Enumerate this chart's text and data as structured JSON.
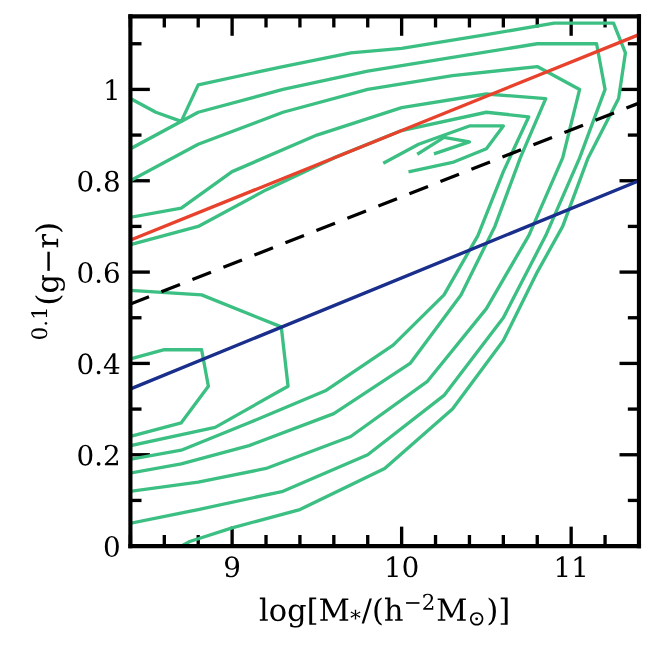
{
  "chart_data": {
    "type": "line",
    "xlabel": "log[M$_{*}$/(h$^{−2}$M$_{⊙}$)]",
    "ylabel": "$^{0.1}$(g−r)",
    "xlim": [
      8.4,
      11.4
    ],
    "ylim": [
      0,
      1.16
    ],
    "xticks": [
      {
        "value": 8.4,
        "label": null
      },
      {
        "value": 8.6,
        "label": null
      },
      {
        "value": 8.8,
        "label": null
      },
      9,
      {
        "value": 9.2,
        "label": null
      },
      {
        "value": 9.4,
        "label": null
      },
      {
        "value": 9.6,
        "label": null
      },
      {
        "value": 9.8,
        "label": null
      },
      10,
      {
        "value": 10.2,
        "label": null
      },
      {
        "value": 10.4,
        "label": null
      },
      {
        "value": 10.6,
        "label": null
      },
      {
        "value": 10.8,
        "label": null
      },
      11,
      {
        "value": 11.2,
        "label": null
      }
    ],
    "yticks": [
      0,
      {
        "value": 0.1,
        "label": null
      },
      0.2,
      {
        "value": 0.3,
        "label": null
      },
      0.4,
      {
        "value": 0.5,
        "label": null
      },
      0.6,
      {
        "value": 0.7,
        "label": null
      },
      0.8,
      {
        "value": 0.9,
        "label": null
      },
      1,
      {
        "value": 1.1,
        "label": null
      }
    ],
    "grid": false,
    "legend": false,
    "series": [
      {
        "color": "#3cbf82",
        "line_style": "solid",
        "x": [
          8.4,
          8.55,
          8.7,
          8.8,
          9.3,
          9.7,
          10.0,
          10.5,
          10.9,
          11.25,
          11.32,
          11.28,
          11.1,
          10.95,
          10.8,
          10.6,
          10.3,
          9.9,
          9.4,
          9.0,
          8.75,
          8.7
        ],
        "values": [
          0.98,
          0.95,
          0.93,
          1.01,
          1.05,
          1.08,
          1.09,
          1.12,
          1.145,
          1.145,
          1.08,
          0.98,
          0.85,
          0.7,
          0.6,
          0.45,
          0.3,
          0.17,
          0.08,
          0.04,
          0.01,
          0
        ]
      },
      {
        "color": "#3cbf82",
        "line_style": "solid",
        "x": [
          8.4,
          8.8,
          9.3,
          9.8,
          10.3,
          10.8,
          11.15,
          11.2,
          11.05,
          10.85,
          10.6,
          10.25,
          9.8,
          9.3,
          8.8,
          8.4
        ],
        "values": [
          0.87,
          0.95,
          1.0,
          1.04,
          1.07,
          1.1,
          1.1,
          1.0,
          0.85,
          0.68,
          0.5,
          0.33,
          0.2,
          0.12,
          0.08,
          0.05
        ]
      },
      {
        "color": "#3cbf82",
        "line_style": "solid",
        "x": [
          8.4,
          8.8,
          9.3,
          9.8,
          10.3,
          10.8,
          11.05,
          10.95,
          10.75,
          10.5,
          10.15,
          9.7,
          9.2,
          8.8,
          8.4
        ],
        "values": [
          0.8,
          0.88,
          0.95,
          1.0,
          1.03,
          1.05,
          1.0,
          0.85,
          0.68,
          0.52,
          0.36,
          0.24,
          0.17,
          0.14,
          0.12
        ]
      },
      {
        "color": "#3cbf82",
        "line_style": "solid",
        "x": [
          8.4,
          8.7,
          9.0,
          9.5,
          10.0,
          10.5,
          10.85,
          10.7,
          10.55,
          10.35,
          10.05,
          9.6,
          9.1,
          8.7,
          8.4
        ],
        "values": [
          0.72,
          0.74,
          0.82,
          0.9,
          0.96,
          0.99,
          0.98,
          0.85,
          0.7,
          0.55,
          0.4,
          0.29,
          0.22,
          0.18,
          0.16
        ]
      },
      {
        "color": "#3cbf82",
        "line_style": "solid",
        "x": [
          8.4,
          8.8,
          9.2,
          9.6,
          10.0,
          10.5,
          10.75,
          10.6,
          10.45,
          10.25,
          9.95,
          9.55,
          9.1,
          8.7,
          8.4
        ],
        "values": [
          0.66,
          0.7,
          0.78,
          0.85,
          0.91,
          0.95,
          0.94,
          0.82,
          0.68,
          0.55,
          0.44,
          0.34,
          0.27,
          0.21,
          0.19
        ]
      },
      {
        "color": "#3cbf82",
        "line_style": "solid",
        "x": [
          8.4,
          8.82,
          9.29,
          9.33,
          8.9,
          8.4
        ],
        "values": [
          0.56,
          0.55,
          0.48,
          0.35,
          0.26,
          0.22
        ]
      },
      {
        "color": "#3cbf82",
        "line_style": "solid",
        "x": [
          8.4,
          8.6,
          8.82,
          8.86,
          8.7,
          8.4
        ],
        "values": [
          0.41,
          0.43,
          0.43,
          0.35,
          0.27,
          0.24
        ]
      },
      {
        "color": "#3cbf82",
        "line_style": "solid",
        "x": [
          9.9,
          10.1,
          10.4,
          10.6,
          10.5,
          10.3,
          10.05
        ],
        "values": [
          0.84,
          0.88,
          0.92,
          0.92,
          0.87,
          0.84,
          0.82
        ]
      },
      {
        "color": "#3cbf82",
        "line_style": "solid",
        "x": [
          10.1,
          10.25,
          10.4,
          10.2
        ],
        "values": [
          0.86,
          0.895,
          0.885,
          0.86
        ]
      },
      {
        "color": "#e8412c",
        "line_style": "solid",
        "x": [
          8.4,
          11.4
        ],
        "values": [
          0.67,
          1.12
        ]
      },
      {
        "color": "#000000",
        "line_style": "dashed",
        "x": [
          8.4,
          11.4
        ],
        "values": [
          0.53,
          0.97
        ]
      },
      {
        "color": "#1a2e8c",
        "line_style": "solid",
        "x": [
          8.4,
          11.4
        ],
        "values": [
          0.344,
          0.8
        ]
      }
    ]
  }
}
